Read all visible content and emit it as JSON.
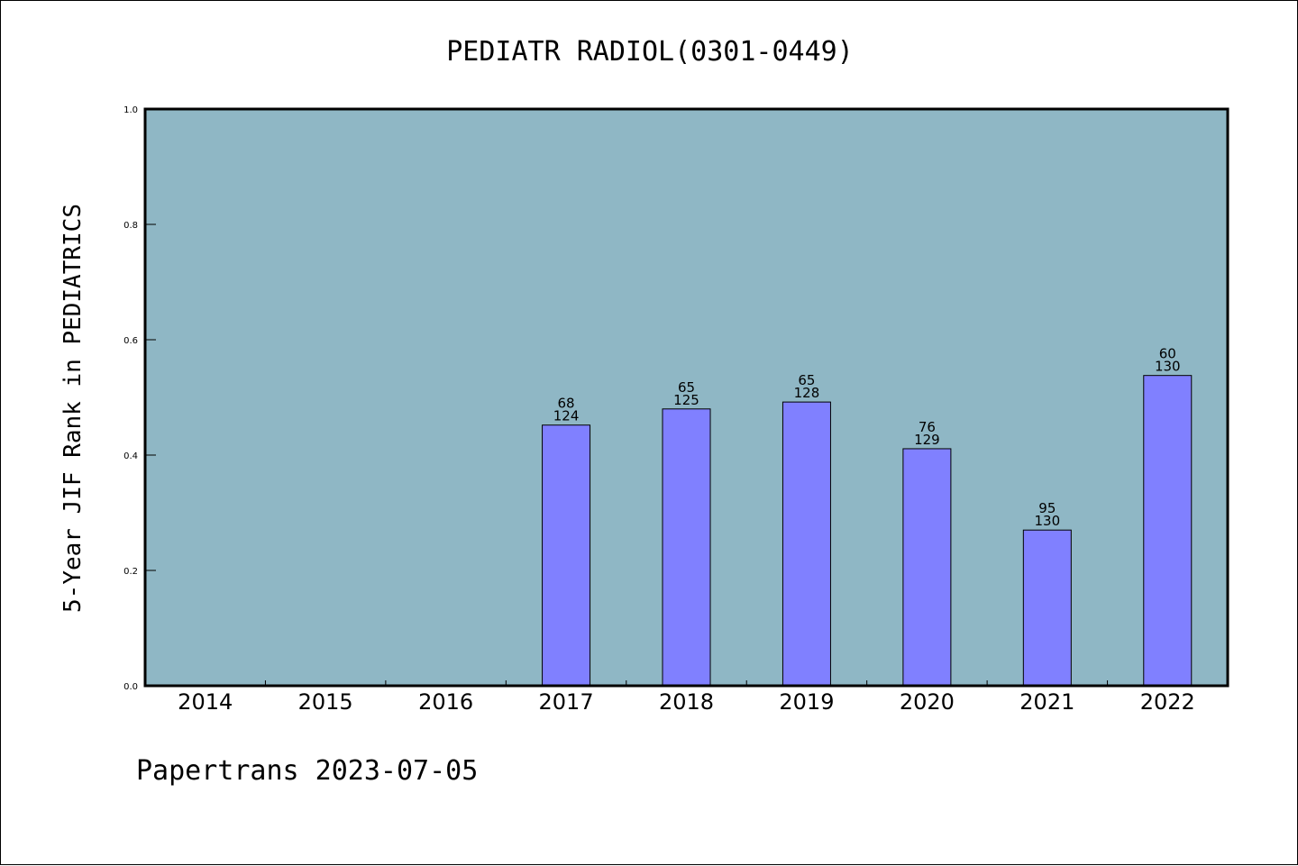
{
  "chart_data": {
    "type": "bar",
    "title": "PEDIATR RADIOL(0301-0449)",
    "xlabel": "",
    "ylabel": "5-Year JIF Rank in PEDIATRICS",
    "ylim": [
      0.0,
      1.0
    ],
    "yticks": [
      "0.0",
      "0.2",
      "0.4",
      "0.6",
      "0.8",
      "1.0"
    ],
    "categories": [
      "2014",
      "2015",
      "2016",
      "2017",
      "2018",
      "2019",
      "2020",
      "2021",
      "2022"
    ],
    "series": [
      {
        "values": [
          null,
          null,
          null,
          0.452,
          0.48,
          0.492,
          0.411,
          0.27,
          0.538
        ],
        "labels_top": [
          "",
          "",
          "",
          "68",
          "65",
          "65",
          "76",
          "95",
          "60"
        ],
        "labels_bottom": [
          "",
          "",
          "",
          "124",
          "125",
          "128",
          "129",
          "130",
          "130"
        ]
      }
    ],
    "grid": false,
    "colors": {
      "plot_background": "#8fb7c5",
      "bar_fill": "#8080ff",
      "bar_stroke": "#000000"
    }
  },
  "footer": "Papertrans 2023-07-05"
}
